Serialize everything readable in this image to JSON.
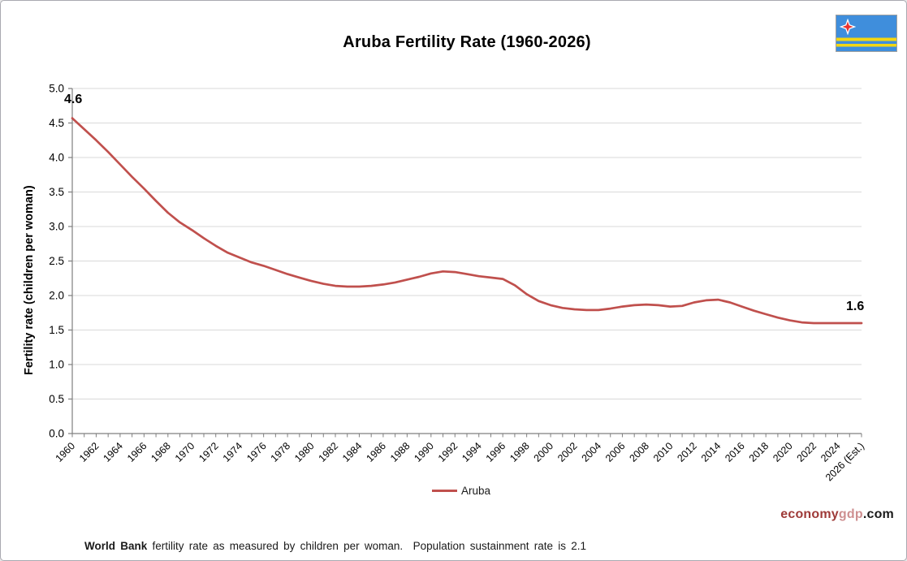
{
  "chart_data": {
    "type": "line",
    "title": "Aruba Fertility Rate (1960-2026)",
    "ylabel": "Fertility rate (children per woman)",
    "xlabel": "",
    "ylim": [
      0.0,
      5.0
    ],
    "ytick_step": 0.5,
    "grid": "horizontal",
    "x": [
      1960,
      1961,
      1962,
      1963,
      1964,
      1965,
      1966,
      1967,
      1968,
      1969,
      1970,
      1971,
      1972,
      1973,
      1974,
      1975,
      1976,
      1977,
      1978,
      1979,
      1980,
      1981,
      1982,
      1983,
      1984,
      1985,
      1986,
      1987,
      1988,
      1989,
      1990,
      1991,
      1992,
      1993,
      1994,
      1995,
      1996,
      1997,
      1998,
      1999,
      2000,
      2001,
      2002,
      2003,
      2004,
      2005,
      2006,
      2007,
      2008,
      2009,
      2010,
      2011,
      2012,
      2013,
      2014,
      2015,
      2016,
      2017,
      2018,
      2019,
      2020,
      2021,
      2022,
      2023,
      2024,
      2025,
      2026
    ],
    "series": [
      {
        "name": "Aruba",
        "color": "#C0504D",
        "values": [
          4.57,
          4.41,
          4.25,
          4.08,
          3.9,
          3.72,
          3.55,
          3.37,
          3.2,
          3.06,
          2.95,
          2.83,
          2.72,
          2.62,
          2.55,
          2.48,
          2.43,
          2.37,
          2.31,
          2.26,
          2.21,
          2.17,
          2.14,
          2.13,
          2.13,
          2.14,
          2.16,
          2.19,
          2.23,
          2.27,
          2.32,
          2.35,
          2.34,
          2.31,
          2.28,
          2.26,
          2.24,
          2.15,
          2.02,
          1.92,
          1.86,
          1.82,
          1.8,
          1.79,
          1.79,
          1.81,
          1.84,
          1.86,
          1.87,
          1.86,
          1.84,
          1.85,
          1.9,
          1.93,
          1.94,
          1.9,
          1.84,
          1.78,
          1.73,
          1.68,
          1.64,
          1.61,
          1.6,
          1.6,
          1.6,
          1.6,
          1.6
        ]
      }
    ],
    "x_tick_labels": [
      "1960",
      "1962",
      "1964",
      "1966",
      "1968",
      "1970",
      "1972",
      "1974",
      "1976",
      "1978",
      "1980",
      "1982",
      "1984",
      "1986",
      "1988",
      "1990",
      "1992",
      "1994",
      "1996",
      "1998",
      "2000",
      "2002",
      "2004",
      "2006",
      "2008",
      "2010",
      "2012",
      "2014",
      "2016",
      "2018",
      "2020",
      "2022",
      "2024",
      "2026 (Est.)"
    ],
    "y_tick_labels": [
      "0.0",
      "0.5",
      "1.0",
      "1.5",
      "2.0",
      "2.5",
      "3.0",
      "3.5",
      "4.0",
      "4.5",
      "5.0"
    ],
    "legend": {
      "position": "bottom",
      "entries": [
        {
          "label": "Aruba",
          "color": "#C0504D"
        }
      ]
    },
    "annotations": [
      {
        "text": "4.6",
        "x": 1960
      },
      {
        "text": "1.6",
        "x": 2026
      }
    ]
  },
  "footnote": {
    "bold": "World Bank",
    "rest": " fertility rate as measured by children per woman.  Population sustainment rate is 2.1"
  },
  "brand": {
    "economy": "economy",
    "gdp": "gdp",
    "com": ".com"
  },
  "colors": {
    "line": "#C0504D",
    "grid": "#D9D9D9",
    "axis": "#7F7F7F",
    "flag_blue": "#3F8EDC",
    "flag_yellow": "#F3D612",
    "flag_star_red": "#E8322E",
    "brand_economy": "#9E3A38",
    "brand_gdp": "#CE8F90",
    "brand_com": "#1A1A1A"
  }
}
